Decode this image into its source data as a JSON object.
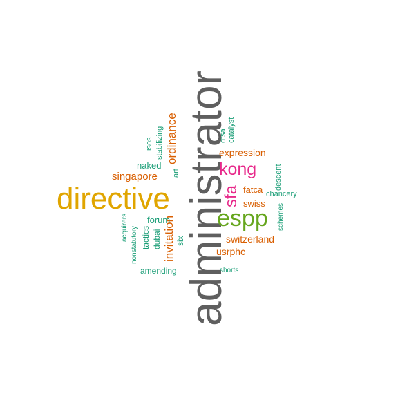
{
  "colors": {
    "gray": "#5f5f5f",
    "gold": "#e0a500",
    "green": "#66a61e",
    "pink": "#e7298a",
    "orange": "#d95f02",
    "teal": "#1b9e77"
  },
  "words": {
    "administrator": "administrator",
    "directive": "directive",
    "espp": "espp",
    "kong": "kong",
    "sfa": "sfa",
    "ordinance": "ordinance",
    "invitation": "invitation",
    "singapore": "singapore",
    "expression": "expression",
    "switzerland": "switzerland",
    "usrphc": "usrphc",
    "fatca": "fatca",
    "swiss": "swiss",
    "naked": "naked",
    "forum": "forum",
    "tactics": "tactics",
    "dubai": "dubai",
    "six": "six",
    "art": "art",
    "amending": "amending",
    "shorts": "shorts",
    "chancery": "chancery",
    "descent": "descent",
    "schemes": "schemes",
    "dfsa": "dfsa",
    "catalyst": "catalyst",
    "isos": "isos",
    "stabilizing": "stabilizing",
    "acquirers": "acquirers",
    "nonstatutory": "nonstatutory"
  }
}
